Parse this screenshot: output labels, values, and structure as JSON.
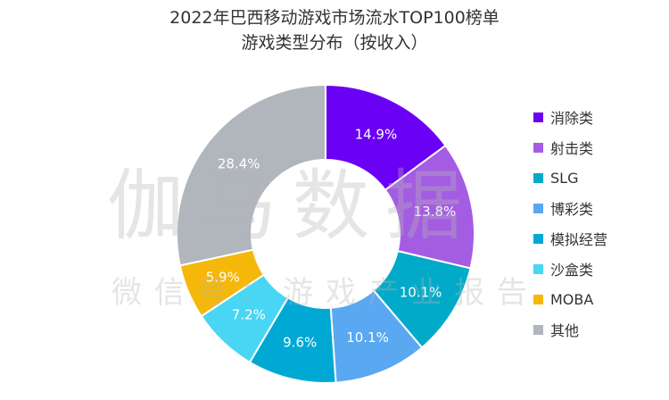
{
  "chart_data": {
    "type": "pie",
    "donut": true,
    "title": "2022年巴西移动游戏市场流水TOP100榜单",
    "subtitle": "游戏类型分布（按收入）",
    "legend_position": "right",
    "categories": [
      "消除类",
      "射击类",
      "SLG",
      "博彩类",
      "模拟经营",
      "沙盒类",
      "MOBA",
      "其他"
    ],
    "values": [
      14.9,
      13.8,
      10.1,
      10.1,
      9.6,
      7.2,
      5.9,
      28.4
    ],
    "value_labels": [
      "14.9%",
      "13.8%",
      "10.1%",
      "10.1%",
      "9.6%",
      "7.2%",
      "5.9%",
      "28.4%"
    ],
    "colors": [
      "#6a00f4",
      "#a45de2",
      "#00aac8",
      "#5aa8f2",
      "#00a8d4",
      "#48d6f4",
      "#f5b80a",
      "#b0b6bc"
    ]
  },
  "watermark": {
    "main": "伽马数据",
    "sub": "微信号：游戏产业报告"
  }
}
